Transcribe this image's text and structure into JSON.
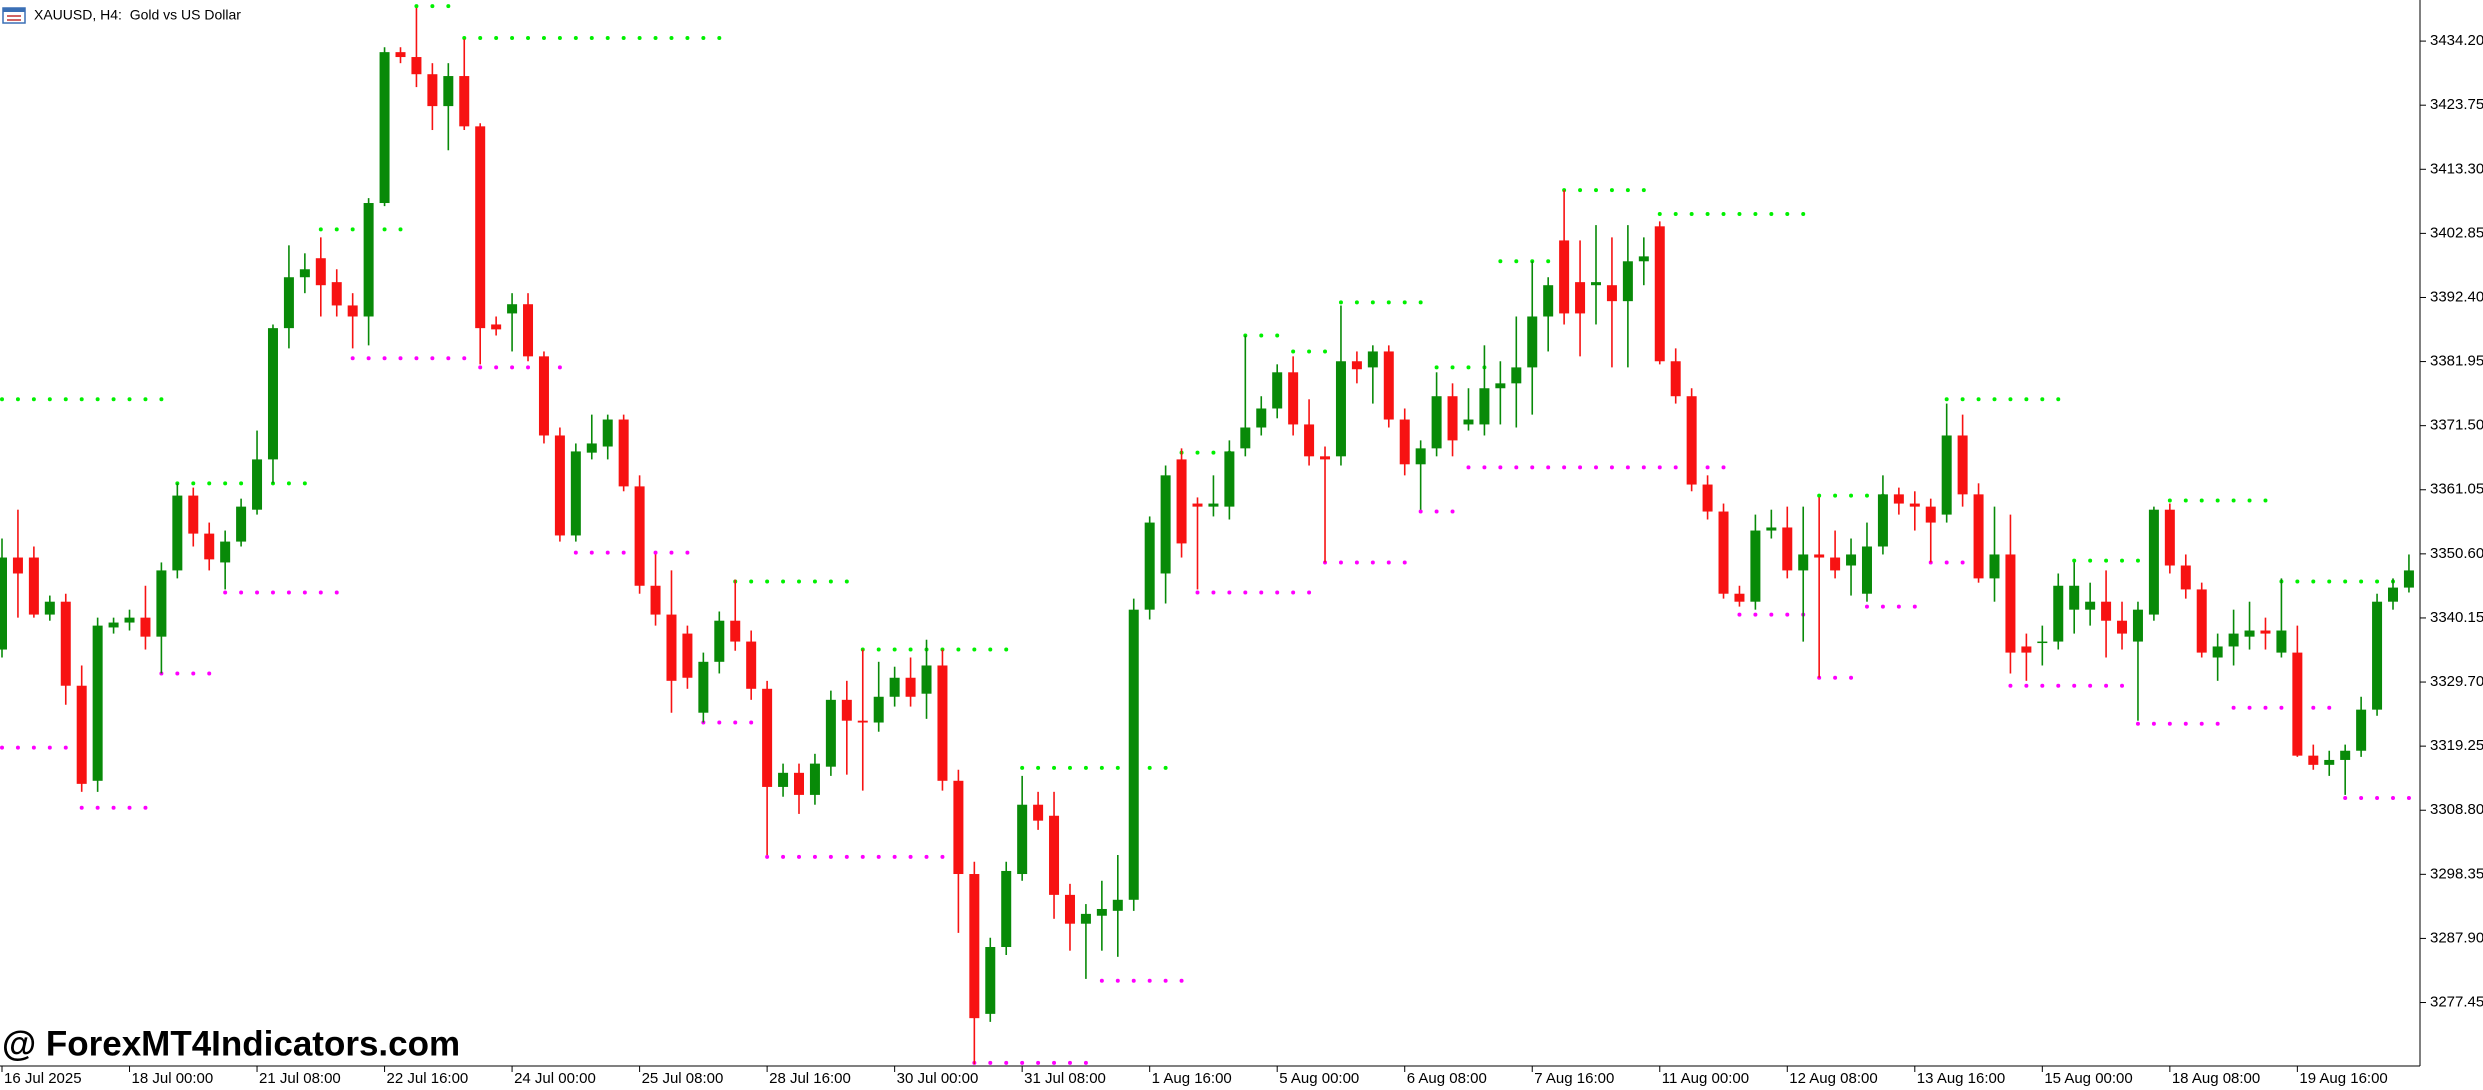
{
  "chart_data": {
    "type": "candlestick",
    "title": "XAUUSD, H4:  Gold vs US Dollar",
    "watermark": "@ ForexMT4Indicators.com",
    "up_color": "#088a08",
    "down_color": "#f71212",
    "ylim": [
      3267.1,
      3440.9
    ],
    "yticks": [
      {
        "value": 3434.2,
        "label": "3434.20"
      },
      {
        "value": 3423.75,
        "label": "3423.75"
      },
      {
        "value": 3413.3,
        "label": "3413.30"
      },
      {
        "value": 3402.85,
        "label": "3402.85"
      },
      {
        "value": 3392.4,
        "label": "3392.40"
      },
      {
        "value": 3381.95,
        "label": "3381.95"
      },
      {
        "value": 3371.5,
        "label": "3371.50"
      },
      {
        "value": 3361.05,
        "label": "3361.05"
      },
      {
        "value": 3350.6,
        "label": "3350.60"
      },
      {
        "value": 3340.15,
        "label": "3340.15"
      },
      {
        "value": 3329.7,
        "label": "3329.70"
      },
      {
        "value": 3319.25,
        "label": "3319.25"
      },
      {
        "value": 3308.8,
        "label": "3308.80"
      },
      {
        "value": 3298.35,
        "label": "3298.35"
      },
      {
        "value": 3287.9,
        "label": "3287.90"
      },
      {
        "value": 3277.45,
        "label": "3277.45"
      }
    ],
    "categories": [
      "16 Jul 2025",
      null,
      null,
      null,
      null,
      null,
      null,
      null,
      "18 Jul 00:00",
      null,
      null,
      null,
      null,
      null,
      null,
      null,
      "21 Jul 08:00",
      null,
      null,
      null,
      null,
      null,
      null,
      null,
      "22 Jul 16:00",
      null,
      null,
      null,
      null,
      null,
      null,
      null,
      "24 Jul 00:00",
      null,
      null,
      null,
      null,
      null,
      null,
      null,
      "25 Jul 08:00",
      null,
      null,
      null,
      null,
      null,
      null,
      null,
      "28 Jul 16:00",
      null,
      null,
      null,
      null,
      null,
      null,
      null,
      "30 Jul 00:00",
      null,
      null,
      null,
      null,
      null,
      null,
      null,
      "31 Jul 08:00",
      null,
      null,
      null,
      null,
      null,
      null,
      null,
      "1 Aug 16:00",
      null,
      null,
      null,
      null,
      null,
      null,
      null,
      "5 Aug 00:00",
      null,
      null,
      null,
      null,
      null,
      null,
      null,
      "6 Aug 08:00",
      null,
      null,
      null,
      null,
      null,
      null,
      null,
      "7 Aug 16:00",
      null,
      null,
      null,
      null,
      null,
      null,
      null,
      "11 Aug 00:00",
      null,
      null,
      null,
      null,
      null,
      null,
      null,
      "12 Aug 08:00",
      null,
      null,
      null,
      null,
      null,
      null,
      null,
      "13 Aug 16:00",
      null,
      null,
      null,
      null,
      null,
      null,
      null,
      "15 Aug 00:00",
      null,
      null,
      null,
      null,
      null,
      null,
      null,
      "18 Aug 08:00",
      null,
      null,
      null,
      null,
      null,
      null,
      null,
      "19 Aug 16:00",
      null,
      null,
      null,
      null,
      null,
      null,
      null
    ],
    "open": [
      3335.0,
      3350.0,
      3350.0,
      3340.7,
      3342.8,
      3329.1,
      3313.6,
      3338.6,
      3339.4,
      3340.2,
      3337.1,
      3347.9,
      3360.1,
      3353.9,
      3349.2,
      3352.6,
      3357.8,
      3366.0,
      3387.4,
      3395.7,
      3398.8,
      3394.9,
      3391.1,
      3389.3,
      3407.8,
      3432.4,
      3431.6,
      3428.8,
      3423.6,
      3428.5,
      3420.3,
      3388.0,
      3389.8,
      3391.3,
      3382.8,
      3369.9,
      3353.6,
      3367.1,
      3368.1,
      3372.5,
      3361.6,
      3345.4,
      3340.7,
      3337.6,
      3324.7,
      3333.0,
      3339.7,
      3336.3,
      3328.6,
      3312.6,
      3314.9,
      3311.3,
      3315.9,
      3326.8,
      3323.4,
      3323.1,
      3327.3,
      3330.4,
      3327.8,
      3332.4,
      3313.6,
      3298.4,
      3275.6,
      3286.5,
      3298.4,
      3309.7,
      3307.9,
      3295.0,
      3290.3,
      3291.6,
      3292.4,
      3294.2,
      3341.5,
      3347.4,
      3366.0,
      3358.8,
      3358.3,
      3358.3,
      3367.8,
      3371.2,
      3374.3,
      3380.2,
      3371.7,
      3366.5,
      3366.5,
      3382.0,
      3381.0,
      3383.6,
      3372.5,
      3365.2,
      3367.8,
      3376.3,
      3371.7,
      3371.7,
      3377.6,
      3378.4,
      3381.0,
      3389.3,
      3401.7,
      3394.9,
      3394.4,
      3394.4,
      3391.8,
      3398.3,
      3404.0,
      3382.0,
      3376.3,
      3361.9,
      3357.5,
      3344.1,
      3342.8,
      3354.4,
      3354.9,
      3347.9,
      3350.5,
      3350.0,
      3348.7,
      3344.1,
      3351.8,
      3360.3,
      3358.8,
      3358.3,
      3357.0,
      3369.9,
      3360.3,
      3346.6,
      3350.5,
      3335.5,
      3336.1,
      3336.3,
      3341.5,
      3341.5,
      3342.8,
      3339.7,
      3336.3,
      3340.7,
      3357.8,
      3348.7,
      3344.8,
      3333.7,
      3335.5,
      3337.1,
      3338.1,
      3334.5,
      3334.5,
      3317.7,
      3316.2,
      3317.0,
      3318.5,
      3325.2,
      3342.8,
      3345.1
    ],
    "high": [
      3353.1,
      3357.8,
      3351.8,
      3343.8,
      3344.1,
      3332.4,
      3340.2,
      3340.2,
      3341.5,
      3345.4,
      3349.2,
      3362.1,
      3361.4,
      3355.7,
      3354.4,
      3359.6,
      3370.7,
      3388.0,
      3400.9,
      3399.6,
      3402.2,
      3397.0,
      3393.1,
      3408.6,
      3433.2,
      3433.2,
      3439.6,
      3430.6,
      3430.6,
      3434.5,
      3420.8,
      3389.3,
      3393.1,
      3393.1,
      3383.6,
      3371.2,
      3368.6,
      3373.3,
      3373.3,
      3373.3,
      3363.4,
      3350.5,
      3347.9,
      3338.9,
      3334.5,
      3341.2,
      3346.4,
      3338.1,
      3329.9,
      3316.4,
      3316.4,
      3318.0,
      3328.3,
      3329.9,
      3335.0,
      3333.0,
      3332.2,
      3333.7,
      3336.6,
      3335.0,
      3315.4,
      3300.4,
      3288.0,
      3300.4,
      3314.4,
      3311.8,
      3311.8,
      3296.8,
      3293.5,
      3297.3,
      3301.5,
      3343.3,
      3356.7,
      3365.0,
      3367.8,
      3359.8,
      3363.4,
      3369.1,
      3386.2,
      3376.3,
      3381.5,
      3382.8,
      3375.8,
      3368.1,
      3391.1,
      3383.6,
      3384.6,
      3384.6,
      3374.3,
      3369.1,
      3380.2,
      3378.4,
      3377.6,
      3384.6,
      3382.0,
      3389.3,
      3398.3,
      3395.7,
      3409.9,
      3401.7,
      3404.2,
      3402.2,
      3404.2,
      3402.2,
      3404.8,
      3384.1,
      3377.6,
      3363.4,
      3358.8,
      3345.4,
      3357.0,
      3357.8,
      3358.3,
      3358.3,
      3359.8,
      3354.4,
      3353.1,
      3355.7,
      3363.4,
      3361.4,
      3360.8,
      3359.6,
      3375.1,
      3373.3,
      3362.1,
      3358.3,
      3357.0,
      3337.6,
      3338.9,
      3347.4,
      3349.2,
      3345.9,
      3347.9,
      3342.8,
      3342.8,
      3358.3,
      3358.8,
      3350.5,
      3345.9,
      3337.6,
      3341.5,
      3342.8,
      3340.2,
      3346.6,
      3338.9,
      3319.5,
      3318.5,
      3319.5,
      3327.3,
      3344.1,
      3346.6,
      3350.5
    ],
    "low": [
      3333.7,
      3340.2,
      3340.2,
      3339.7,
      3326.0,
      3311.8,
      3311.8,
      3337.6,
      3338.1,
      3335.0,
      3331.1,
      3346.6,
      3351.8,
      3347.9,
      3344.8,
      3351.8,
      3357.0,
      3362.1,
      3384.1,
      3393.1,
      3389.3,
      3389.3,
      3384.1,
      3384.6,
      3407.3,
      3430.6,
      3426.7,
      3419.7,
      3416.4,
      3419.7,
      3381.5,
      3386.2,
      3383.6,
      3382.0,
      3368.6,
      3352.6,
      3352.6,
      3366.0,
      3366.0,
      3360.8,
      3344.1,
      3338.9,
      3324.7,
      3328.6,
      3323.1,
      3331.1,
      3334.8,
      3326.8,
      3301.5,
      3311.0,
      3308.2,
      3309.7,
      3314.4,
      3314.6,
      3312.0,
      3321.6,
      3325.7,
      3325.7,
      3323.7,
      3312.0,
      3288.8,
      3267.4,
      3274.3,
      3285.2,
      3297.3,
      3305.6,
      3291.1,
      3285.9,
      3281.3,
      3285.9,
      3284.9,
      3292.4,
      3339.9,
      3342.5,
      3350.0,
      3344.8,
      3356.7,
      3356.2,
      3366.5,
      3369.9,
      3372.7,
      3369.9,
      3365.0,
      3349.2,
      3365.0,
      3378.4,
      3375.1,
      3371.2,
      3363.4,
      3357.8,
      3366.5,
      3366.5,
      3370.7,
      3369.9,
      3371.7,
      3371.2,
      3373.3,
      3383.6,
      3388.0,
      3382.8,
      3388.0,
      3381.0,
      3381.0,
      3394.4,
      3381.5,
      3375.1,
      3360.8,
      3356.2,
      3343.3,
      3342.0,
      3341.5,
      3353.1,
      3346.6,
      3336.3,
      3330.4,
      3346.6,
      3343.8,
      3342.8,
      3350.5,
      3357.0,
      3354.4,
      3349.2,
      3355.7,
      3358.3,
      3345.9,
      3342.8,
      3331.1,
      3329.9,
      3332.4,
      3335.0,
      3337.6,
      3338.9,
      3333.7,
      3335.0,
      3323.4,
      3339.7,
      3347.4,
      3343.3,
      3333.7,
      3329.9,
      3332.4,
      3335.0,
      3335.0,
      3333.7,
      3317.5,
      3315.4,
      3314.4,
      3311.3,
      3317.5,
      3324.2,
      3341.5,
      3344.3
    ],
    "close": [
      3350.0,
      3347.4,
      3340.7,
      3342.8,
      3329.1,
      3313.1,
      3338.9,
      3339.4,
      3340.2,
      3337.1,
      3347.9,
      3360.1,
      3353.9,
      3349.7,
      3352.6,
      3358.3,
      3366.0,
      3387.4,
      3395.7,
      3397.0,
      3394.4,
      3391.1,
      3389.3,
      3407.8,
      3432.4,
      3431.6,
      3428.8,
      3423.6,
      3428.5,
      3420.3,
      3387.4,
      3387.2,
      3391.3,
      3382.8,
      3369.9,
      3353.6,
      3367.3,
      3368.6,
      3372.5,
      3361.6,
      3345.4,
      3340.7,
      3329.9,
      3330.4,
      3333.0,
      3339.7,
      3336.3,
      3328.6,
      3312.6,
      3314.9,
      3311.3,
      3316.4,
      3326.8,
      3323.4,
      3323.1,
      3327.3,
      3330.4,
      3327.3,
      3332.4,
      3313.6,
      3298.4,
      3274.9,
      3286.5,
      3298.9,
      3309.7,
      3307.1,
      3295.0,
      3290.3,
      3291.9,
      3292.7,
      3294.2,
      3341.5,
      3355.7,
      3363.4,
      3352.3,
      3358.3,
      3358.8,
      3367.3,
      3371.2,
      3374.3,
      3380.2,
      3371.7,
      3366.5,
      3366.0,
      3382.0,
      3380.7,
      3383.6,
      3372.5,
      3365.2,
      3367.8,
      3376.3,
      3369.1,
      3372.5,
      3377.6,
      3378.4,
      3381.0,
      3389.3,
      3394.4,
      3389.8,
      3389.8,
      3394.9,
      3391.8,
      3398.3,
      3399.1,
      3382.0,
      3376.3,
      3361.9,
      3357.5,
      3344.1,
      3342.8,
      3354.4,
      3354.9,
      3347.9,
      3350.5,
      3350.0,
      3347.9,
      3350.5,
      3351.8,
      3360.3,
      3358.8,
      3358.3,
      3355.7,
      3369.9,
      3360.3,
      3346.6,
      3350.5,
      3334.5,
      3334.5,
      3336.3,
      3345.4,
      3345.4,
      3342.8,
      3339.7,
      3337.6,
      3341.5,
      3357.8,
      3348.7,
      3344.8,
      3334.5,
      3335.5,
      3337.6,
      3338.1,
      3337.6,
      3338.1,
      3317.7,
      3316.2,
      3317.0,
      3318.5,
      3325.2,
      3342.8,
      3345.1,
      3347.9
    ],
    "resistance_levels": {
      "color": "#00f000",
      "segments": [
        {
          "from": 0,
          "to": 10,
          "value": 3375.8
        },
        {
          "from": 11,
          "to": 19,
          "value": 3362.1
        },
        {
          "from": 20,
          "to": 25,
          "value": 3403.5
        },
        {
          "from": 26,
          "to": 28,
          "value": 3439.9
        },
        {
          "from": 29,
          "to": 45,
          "value": 3434.7
        },
        {
          "from": 46,
          "to": 53,
          "value": 3346.1
        },
        {
          "from": 54,
          "to": 63,
          "value": 3335.0
        },
        {
          "from": 64,
          "to": 73,
          "value": 3315.7
        },
        {
          "from": 74,
          "to": 77,
          "value": 3367.1
        },
        {
          "from": 78,
          "to": 80,
          "value": 3386.2
        },
        {
          "from": 81,
          "to": 83,
          "value": 3383.6
        },
        {
          "from": 84,
          "to": 89,
          "value": 3391.6
        },
        {
          "from": 90,
          "to": 93,
          "value": 3381.0
        },
        {
          "from": 94,
          "to": 97,
          "value": 3398.3
        },
        {
          "from": 98,
          "to": 103,
          "value": 3409.9
        },
        {
          "from": 104,
          "to": 113,
          "value": 3406.0
        },
        {
          "from": 114,
          "to": 118,
          "value": 3360.1
        },
        {
          "from": 122,
          "to": 129,
          "value": 3375.8
        },
        {
          "from": 130,
          "to": 135,
          "value": 3349.5
        },
        {
          "from": 136,
          "to": 142,
          "value": 3359.3
        },
        {
          "from": 143,
          "to": 151,
          "value": 3346.1
        }
      ]
    },
    "support_levels": {
      "color": "#ff00ff",
      "segments": [
        {
          "from": 0,
          "to": 4,
          "value": 3319.0
        },
        {
          "from": 5,
          "to": 9,
          "value": 3309.2
        },
        {
          "from": 10,
          "to": 13,
          "value": 3331.1
        },
        {
          "from": 14,
          "to": 21,
          "value": 3344.3
        },
        {
          "from": 22,
          "to": 29,
          "value": 3382.5
        },
        {
          "from": 30,
          "to": 35,
          "value": 3381.0
        },
        {
          "from": 36,
          "to": 43,
          "value": 3350.8
        },
        {
          "from": 44,
          "to": 47,
          "value": 3323.1
        },
        {
          "from": 48,
          "to": 60,
          "value": 3301.2
        },
        {
          "from": 61,
          "to": 68,
          "value": 3267.6
        },
        {
          "from": 69,
          "to": 74,
          "value": 3281.0
        },
        {
          "from": 75,
          "to": 82,
          "value": 3344.3
        },
        {
          "from": 83,
          "to": 88,
          "value": 3349.2
        },
        {
          "from": 89,
          "to": 91,
          "value": 3357.5
        },
        {
          "from": 92,
          "to": 108,
          "value": 3364.7
        },
        {
          "from": 109,
          "to": 113,
          "value": 3340.7
        },
        {
          "from": 114,
          "to": 116,
          "value": 3330.4
        },
        {
          "from": 117,
          "to": 120,
          "value": 3342.0
        },
        {
          "from": 121,
          "to": 125,
          "value": 3349.2
        },
        {
          "from": 126,
          "to": 133,
          "value": 3329.1
        },
        {
          "from": 134,
          "to": 139,
          "value": 3322.9
        },
        {
          "from": 140,
          "to": 146,
          "value": 3325.5
        },
        {
          "from": 147,
          "to": 151,
          "value": 3310.8
        }
      ]
    }
  }
}
